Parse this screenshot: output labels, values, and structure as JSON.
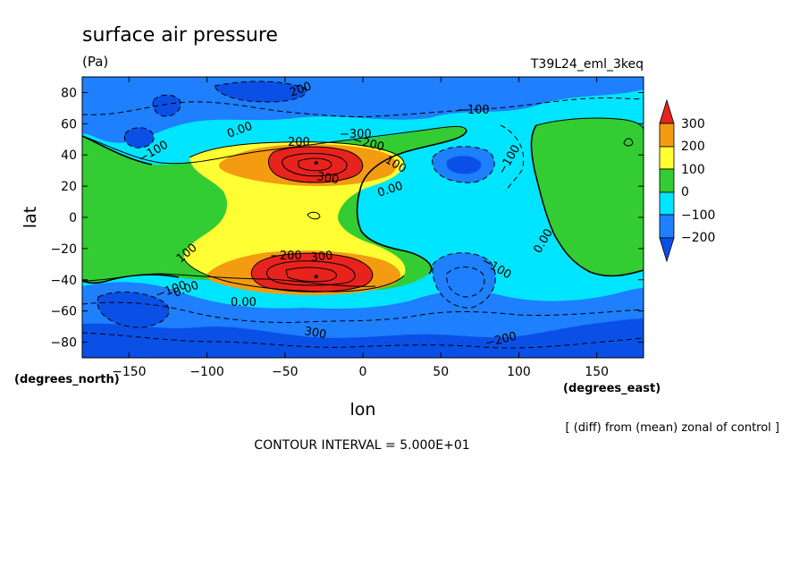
{
  "chart_data": {
    "type": "contour",
    "title": "surface air pressure",
    "units": "(Pa)",
    "run_label": "T39L24_eml_3keq",
    "xlabel": "lon",
    "ylabel": "lat",
    "x_units": "(degrees_east)",
    "y_units": "(degrees_north)",
    "xlim": [
      -180,
      180
    ],
    "ylim": [
      -90,
      90
    ],
    "x_ticks": [
      -150,
      -100,
      -50,
      0,
      50,
      100,
      150
    ],
    "y_ticks": [
      80,
      60,
      40,
      20,
      0,
      -20,
      -40,
      -60,
      -80
    ],
    "colorbar": {
      "labels": [
        "300",
        "200",
        "100",
        "0",
        "−100",
        "−200"
      ],
      "colors": [
        "#e8231e",
        "#f39c12",
        "#ffff33",
        "#33cc33",
        "#00e5ff",
        "#1e7fff",
        "#0a50e6"
      ]
    },
    "contour_labels": [
      "200",
      "300",
      "300",
      "200",
      "300",
      "100",
      "100",
      "0.00",
      "0.00",
      "0.00",
      "0.00",
      "0.00",
      "−100",
      "−100",
      "−100",
      "−100",
      "−100",
      "−200",
      "−200",
      "−200",
      "−300"
    ],
    "note": "[ (diff) from (mean) zonal of control ]",
    "contour_interval": "CONTOUR INTERVAL = 5.000E+01",
    "features": [
      {
        "name": "max-north-atlantic",
        "lon": -30,
        "lat": 35,
        "value": 350
      },
      {
        "name": "max-south-atlantic",
        "lon": -30,
        "lat": -38,
        "value": 400
      }
    ]
  }
}
